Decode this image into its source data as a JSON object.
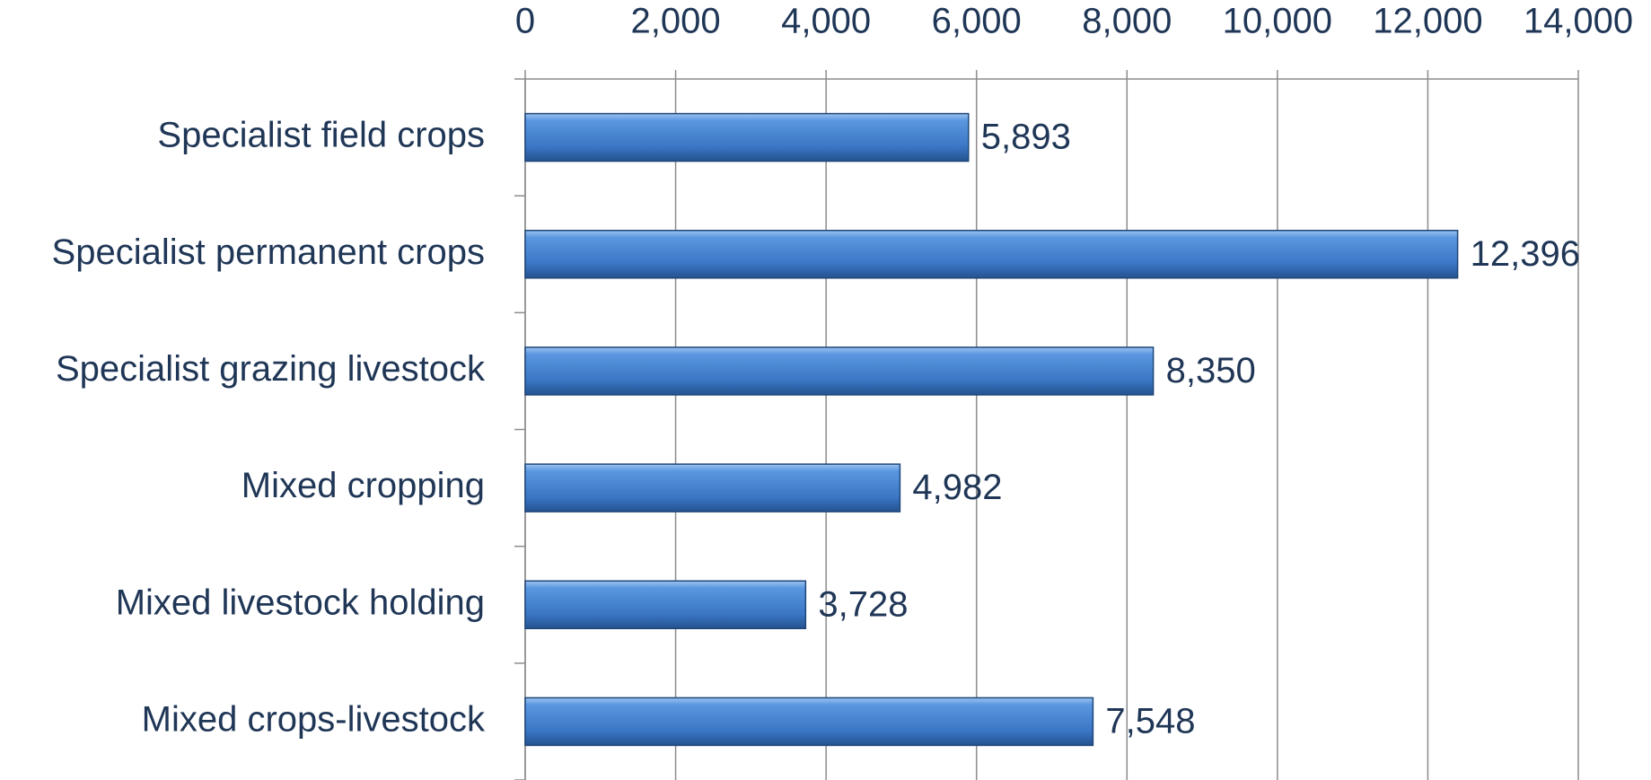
{
  "chart_data": {
    "type": "hbar",
    "categories": [
      "Specialist field crops",
      "Specialist permanent crops",
      "Specialist grazing livestock",
      "Mixed cropping",
      "Mixed livestock holding",
      "Mixed crops-livestock"
    ],
    "values": [
      5893,
      12396,
      8350,
      4982,
      3728,
      7548
    ],
    "value_labels": [
      "5,893",
      "12,396",
      "8,350",
      "4,982",
      "3,728",
      "7,548"
    ],
    "color": "#3f7fd0",
    "xlim": [
      0,
      14000
    ],
    "xticks": [
      0,
      {
        "value": 2000,
        "label": "2,000"
      },
      {
        "value": 4000,
        "label": "4,000"
      },
      {
        "value": 6000,
        "label": "6,000"
      },
      {
        "value": 8000,
        "label": "8,000"
      },
      {
        "value": 10000,
        "label": "10,000"
      },
      {
        "value": 12000,
        "label": "12,000"
      },
      {
        "value": 14000,
        "label": "14,000"
      }
    ],
    "grid": true
  }
}
